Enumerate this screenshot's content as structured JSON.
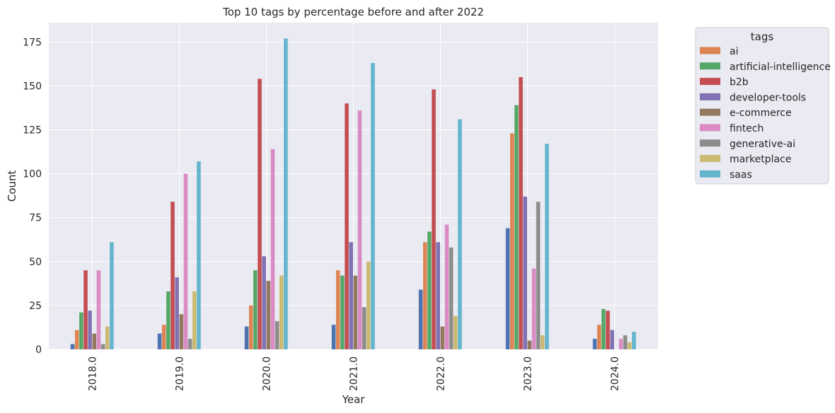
{
  "chart_data": {
    "type": "bar",
    "title": "Top 10 tags by percentage before and after 2022",
    "xlabel": "Year",
    "ylabel": "Count",
    "categories": [
      "2018.0",
      "2019.0",
      "2020.0",
      "2021.0",
      "2022.0",
      "2023.0",
      "2024.0"
    ],
    "ylim": [
      0,
      186
    ],
    "yticks": [
      0,
      25,
      50,
      75,
      100,
      125,
      150,
      175
    ],
    "grid": true,
    "legend_title": "tags",
    "legend_position": "outside-top-right",
    "series": [
      {
        "name": "",
        "color": "#4c72b0",
        "values": [
          3,
          9,
          13,
          14,
          34,
          69,
          6
        ]
      },
      {
        "name": "ai",
        "color": "#dd8452",
        "values": [
          11,
          14,
          25,
          45,
          61,
          123,
          14
        ]
      },
      {
        "name": "artificial-intelligence",
        "color": "#55a868",
        "values": [
          21,
          33,
          45,
          42,
          67,
          139,
          23
        ]
      },
      {
        "name": "b2b",
        "color": "#c44e52",
        "values": [
          45,
          84,
          154,
          140,
          148,
          155,
          22
        ]
      },
      {
        "name": "developer-tools",
        "color": "#8172b3",
        "values": [
          22,
          41,
          53,
          61,
          61,
          87,
          11
        ]
      },
      {
        "name": "e-commerce",
        "color": "#937860",
        "values": [
          9,
          20,
          39,
          42,
          13,
          5,
          0
        ]
      },
      {
        "name": "fintech",
        "color": "#da8bc3",
        "values": [
          45,
          100,
          114,
          136,
          71,
          46,
          6
        ]
      },
      {
        "name": "generative-ai",
        "color": "#8c8c8c",
        "values": [
          3,
          6,
          16,
          24,
          58,
          84,
          8
        ]
      },
      {
        "name": "marketplace",
        "color": "#ccb974",
        "values": [
          13,
          33,
          42,
          50,
          19,
          8,
          4
        ]
      },
      {
        "name": "saas",
        "color": "#64b5cd",
        "values": [
          61,
          107,
          177,
          163,
          131,
          117,
          10
        ]
      }
    ]
  }
}
